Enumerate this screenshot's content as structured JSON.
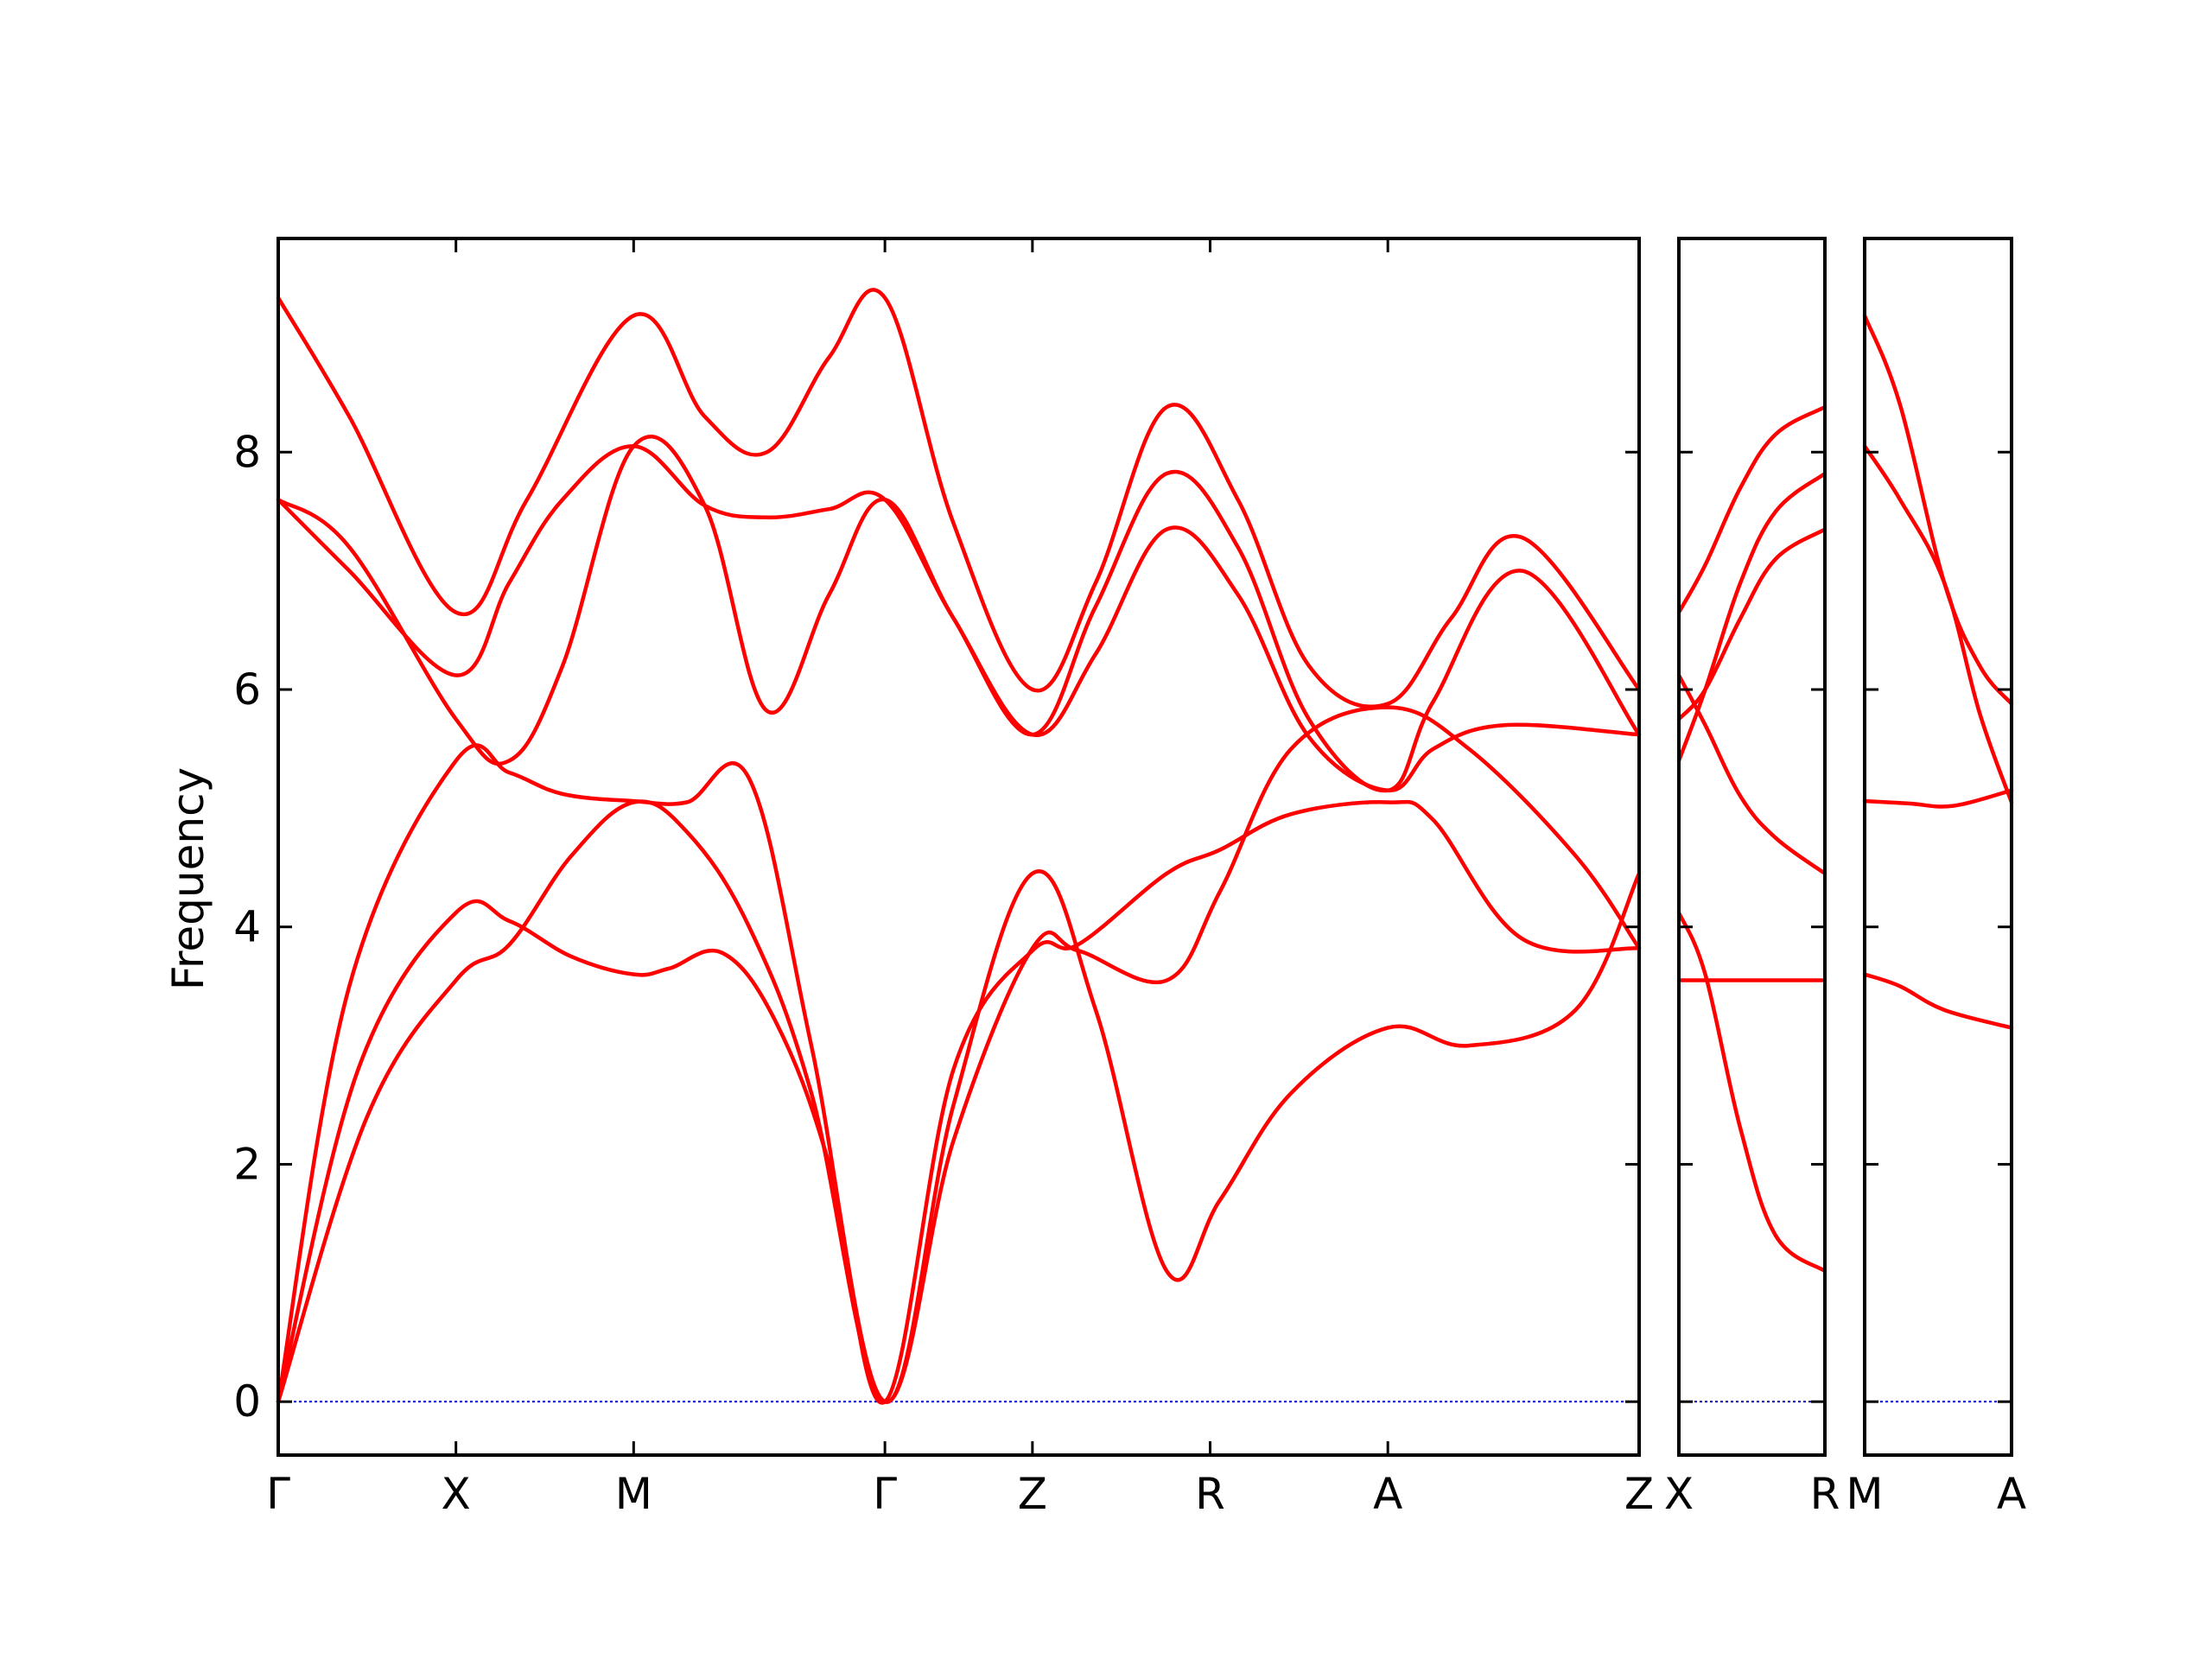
{
  "chart_data": {
    "type": "line",
    "ylabel": "Frequency",
    "ylim": [
      -0.45,
      9.8
    ],
    "yticks": [
      "0",
      "2",
      "4",
      "6",
      "8"
    ],
    "colors": {
      "band": "#ff0000",
      "zero_line": "#0000cc"
    },
    "panels": [
      {
        "path": [
          "Γ",
          "X",
          "M",
          "Γ",
          "Z",
          "R",
          "A",
          "Z"
        ],
        "segment_lengths": [
          1,
          1,
          1.414,
          0.83,
          1,
          1,
          1.414
        ],
        "bands": [
          [
            [
              0,
              0
            ],
            [
              0.5,
              2.4
            ],
            [
              1,
              3.55
            ],
            [
              1.3,
              3.85
            ],
            [
              1.65,
              4.6
            ],
            [
              2,
              5.05
            ],
            [
              2.3,
              4.8
            ],
            [
              2.65,
              4.0
            ],
            [
              3,
              2.6
            ],
            [
              3.414,
              0
            ],
            [
              3.8,
              2.2
            ],
            [
              4.244,
              3.82
            ],
            [
              4.5,
              3.8
            ],
            [
              5,
              3.55
            ],
            [
              5.3,
              4.3
            ],
            [
              5.7,
              5.5
            ],
            [
              6.244,
              5.85
            ],
            [
              6.7,
              5.5
            ],
            [
              7.3,
              4.6
            ],
            [
              7.658,
              3.82
            ]
          ],
          [
            [
              0,
              0
            ],
            [
              0.45,
              2.8
            ],
            [
              1,
              4.12
            ],
            [
              1.3,
              4.05
            ],
            [
              1.65,
              3.75
            ],
            [
              2,
              3.6
            ],
            [
              2.2,
              3.65
            ],
            [
              2.5,
              3.78
            ],
            [
              2.8,
              3.2
            ],
            [
              3.1,
              2.0
            ],
            [
              3.414,
              0
            ],
            [
              3.8,
              2.8
            ],
            [
              4.244,
              3.8
            ],
            [
              4.5,
              3.85
            ],
            [
              5,
              4.45
            ],
            [
              5.3,
              4.65
            ],
            [
              5.7,
              4.95
            ],
            [
              6.244,
              5.05
            ],
            [
              6.5,
              4.9
            ],
            [
              7,
              3.9
            ],
            [
              7.658,
              3.82
            ]
          ],
          [
            [
              0,
              0
            ],
            [
              0.4,
              3.5
            ],
            [
              1,
              5.4
            ],
            [
              1.3,
              5.3
            ],
            [
              1.6,
              5.12
            ],
            [
              2,
              5.06
            ],
            [
              2.3,
              5.05
            ],
            [
              2.65,
              5.25
            ],
            [
              3,
              3.0
            ],
            [
              3.414,
              0
            ],
            [
              3.8,
              2.5
            ],
            [
              4.244,
              4.45
            ],
            [
              4.6,
              3.3
            ],
            [
              5,
              1.1
            ],
            [
              5.3,
              1.7
            ],
            [
              5.7,
              2.6
            ],
            [
              6.244,
              3.15
            ],
            [
              6.7,
              3.0
            ],
            [
              7.3,
              3.3
            ],
            [
              7.658,
              4.45
            ]
          ],
          [
            [
              0,
              7.6
            ],
            [
              0.4,
              7.2
            ],
            [
              1,
              5.75
            ],
            [
              1.3,
              5.4
            ],
            [
              1.6,
              6.2
            ],
            [
              2,
              8.05
            ],
            [
              2.4,
              7.55
            ],
            [
              2.75,
              5.82
            ],
            [
              3.1,
              6.8
            ],
            [
              3.414,
              7.6
            ],
            [
              3.8,
              6.6
            ],
            [
              4.244,
              5.62
            ],
            [
              4.6,
              6.3
            ],
            [
              5,
              7.35
            ],
            [
              5.4,
              6.8
            ],
            [
              5.8,
              5.6
            ],
            [
              6.244,
              5.15
            ],
            [
              6.5,
              5.5
            ],
            [
              6.9,
              5.7
            ],
            [
              7.658,
              5.62
            ]
          ],
          [
            [
              0,
              7.6
            ],
            [
              0.4,
              7.0
            ],
            [
              1,
              6.12
            ],
            [
              1.3,
              6.9
            ],
            [
              1.6,
              7.6
            ],
            [
              2,
              8.05
            ],
            [
              2.4,
              7.55
            ],
            [
              2.75,
              7.45
            ],
            [
              3.1,
              7.52
            ],
            [
              3.414,
              7.6
            ],
            [
              3.8,
              6.6
            ],
            [
              4.244,
              5.62
            ],
            [
              4.6,
              6.7
            ],
            [
              5,
              7.82
            ],
            [
              5.4,
              7.2
            ],
            [
              5.8,
              5.75
            ],
            [
              6.244,
              5.15
            ],
            [
              6.5,
              5.9
            ],
            [
              7.0,
              7.0
            ],
            [
              7.658,
              5.62
            ]
          ],
          [
            [
              0,
              9.3
            ],
            [
              0.4,
              8.3
            ],
            [
              1,
              6.65
            ],
            [
              1.4,
              7.6
            ],
            [
              2,
              9.15
            ],
            [
              2.4,
              8.3
            ],
            [
              2.75,
              8.0
            ],
            [
              3.1,
              8.8
            ],
            [
              3.414,
              9.3
            ],
            [
              3.8,
              7.4
            ],
            [
              4.244,
              6.0
            ],
            [
              4.6,
              6.9
            ],
            [
              5,
              8.38
            ],
            [
              5.4,
              7.6
            ],
            [
              5.8,
              6.2
            ],
            [
              6.244,
              5.88
            ],
            [
              6.6,
              6.6
            ],
            [
              7.0,
              7.28
            ],
            [
              7.658,
              6.0
            ]
          ]
        ]
      },
      {
        "path": [
          "X",
          "R"
        ],
        "segment_lengths": [
          0.83
        ],
        "bands": [
          [
            [
              0,
              4.12
            ],
            [
              0.15,
              3.6
            ],
            [
              0.35,
              2.3
            ],
            [
              0.55,
              1.4
            ],
            [
              0.83,
              1.1
            ]
          ],
          [
            [
              0,
              3.55
            ],
            [
              0.3,
              3.55
            ],
            [
              0.55,
              3.55
            ],
            [
              0.83,
              3.55
            ]
          ],
          [
            [
              0,
              6.12
            ],
            [
              0.15,
              5.7
            ],
            [
              0.35,
              5.1
            ],
            [
              0.55,
              4.75
            ],
            [
              0.83,
              4.45
            ]
          ],
          [
            [
              0,
              5.75
            ],
            [
              0.15,
              6.0
            ],
            [
              0.35,
              6.6
            ],
            [
              0.55,
              7.1
            ],
            [
              0.83,
              7.35
            ]
          ],
          [
            [
              0,
              5.4
            ],
            [
              0.15,
              6.0
            ],
            [
              0.35,
              6.9
            ],
            [
              0.55,
              7.5
            ],
            [
              0.83,
              7.82
            ]
          ],
          [
            [
              0,
              6.65
            ],
            [
              0.15,
              7.05
            ],
            [
              0.35,
              7.7
            ],
            [
              0.55,
              8.15
            ],
            [
              0.83,
              8.38
            ]
          ]
        ]
      },
      {
        "path": [
          "M",
          "A"
        ],
        "segment_lengths": [
          0.83
        ],
        "bands": [
          [
            [
              0,
              3.6
            ],
            [
              0.2,
              3.5
            ],
            [
              0.45,
              3.3
            ],
            [
              0.83,
              3.15
            ]
          ],
          [
            [
              0,
              5.06
            ],
            [
              0.25,
              5.04
            ],
            [
              0.5,
              5.02
            ],
            [
              0.83,
              5.15
            ]
          ],
          [
            [
              0,
              8.05
            ],
            [
              0.2,
              7.6
            ],
            [
              0.45,
              6.9
            ],
            [
              0.65,
              5.8
            ],
            [
              0.83,
              5.05
            ]
          ],
          [
            [
              0,
              9.15
            ],
            [
              0.2,
              8.4
            ],
            [
              0.45,
              6.9
            ],
            [
              0.65,
              6.2
            ],
            [
              0.83,
              5.88
            ]
          ]
        ]
      }
    ],
    "zero_line_value": 0
  }
}
